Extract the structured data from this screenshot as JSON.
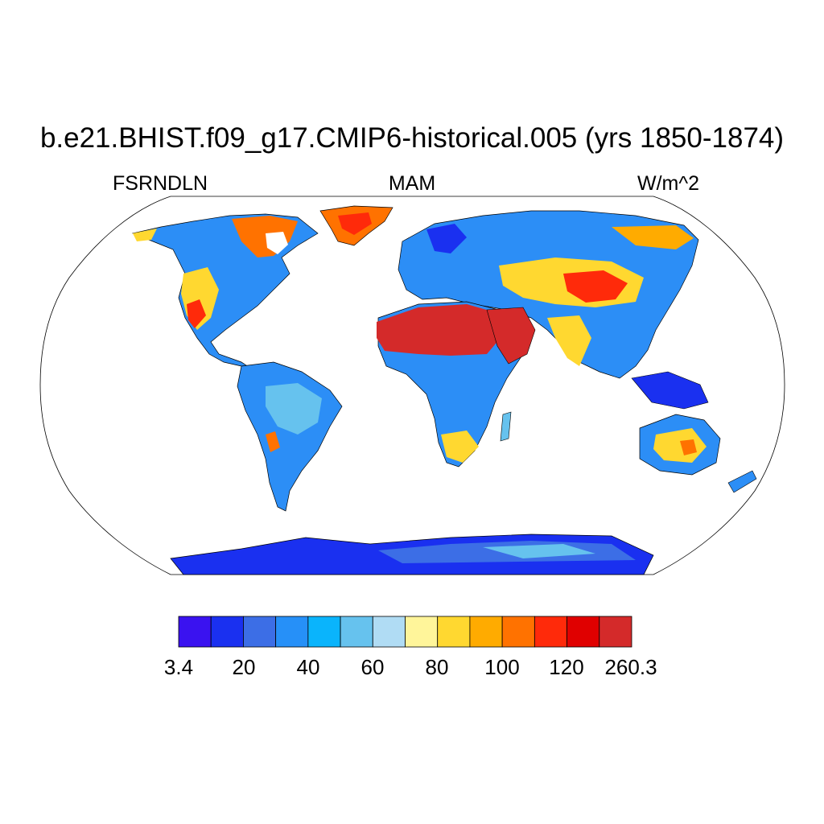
{
  "header": {
    "title": "b.e21.BHIST.f09_g17.CMIP6-historical.005 (yrs 1850-1874)",
    "left_label": "FSRNDLN",
    "center_label": "MAM",
    "right_label": "W/m^2"
  },
  "map": {
    "projection": "Robinson",
    "variable": "FSRNDLN",
    "season": "MAM",
    "units": "W/m^2"
  },
  "colorbar": {
    "colors": [
      "#3a12f0",
      "#1a30f0",
      "#3c6ee6",
      "#2690f8",
      "#0ab4fc",
      "#66c2ee",
      "#b0dcf4",
      "#fff59a",
      "#ffd830",
      "#ffab00",
      "#ff7200",
      "#ff2a0a",
      "#e00000",
      "#d42a2a"
    ],
    "labels": [
      "3.4",
      "20",
      "40",
      "60",
      "80",
      "100",
      "120",
      "260.3"
    ]
  }
}
